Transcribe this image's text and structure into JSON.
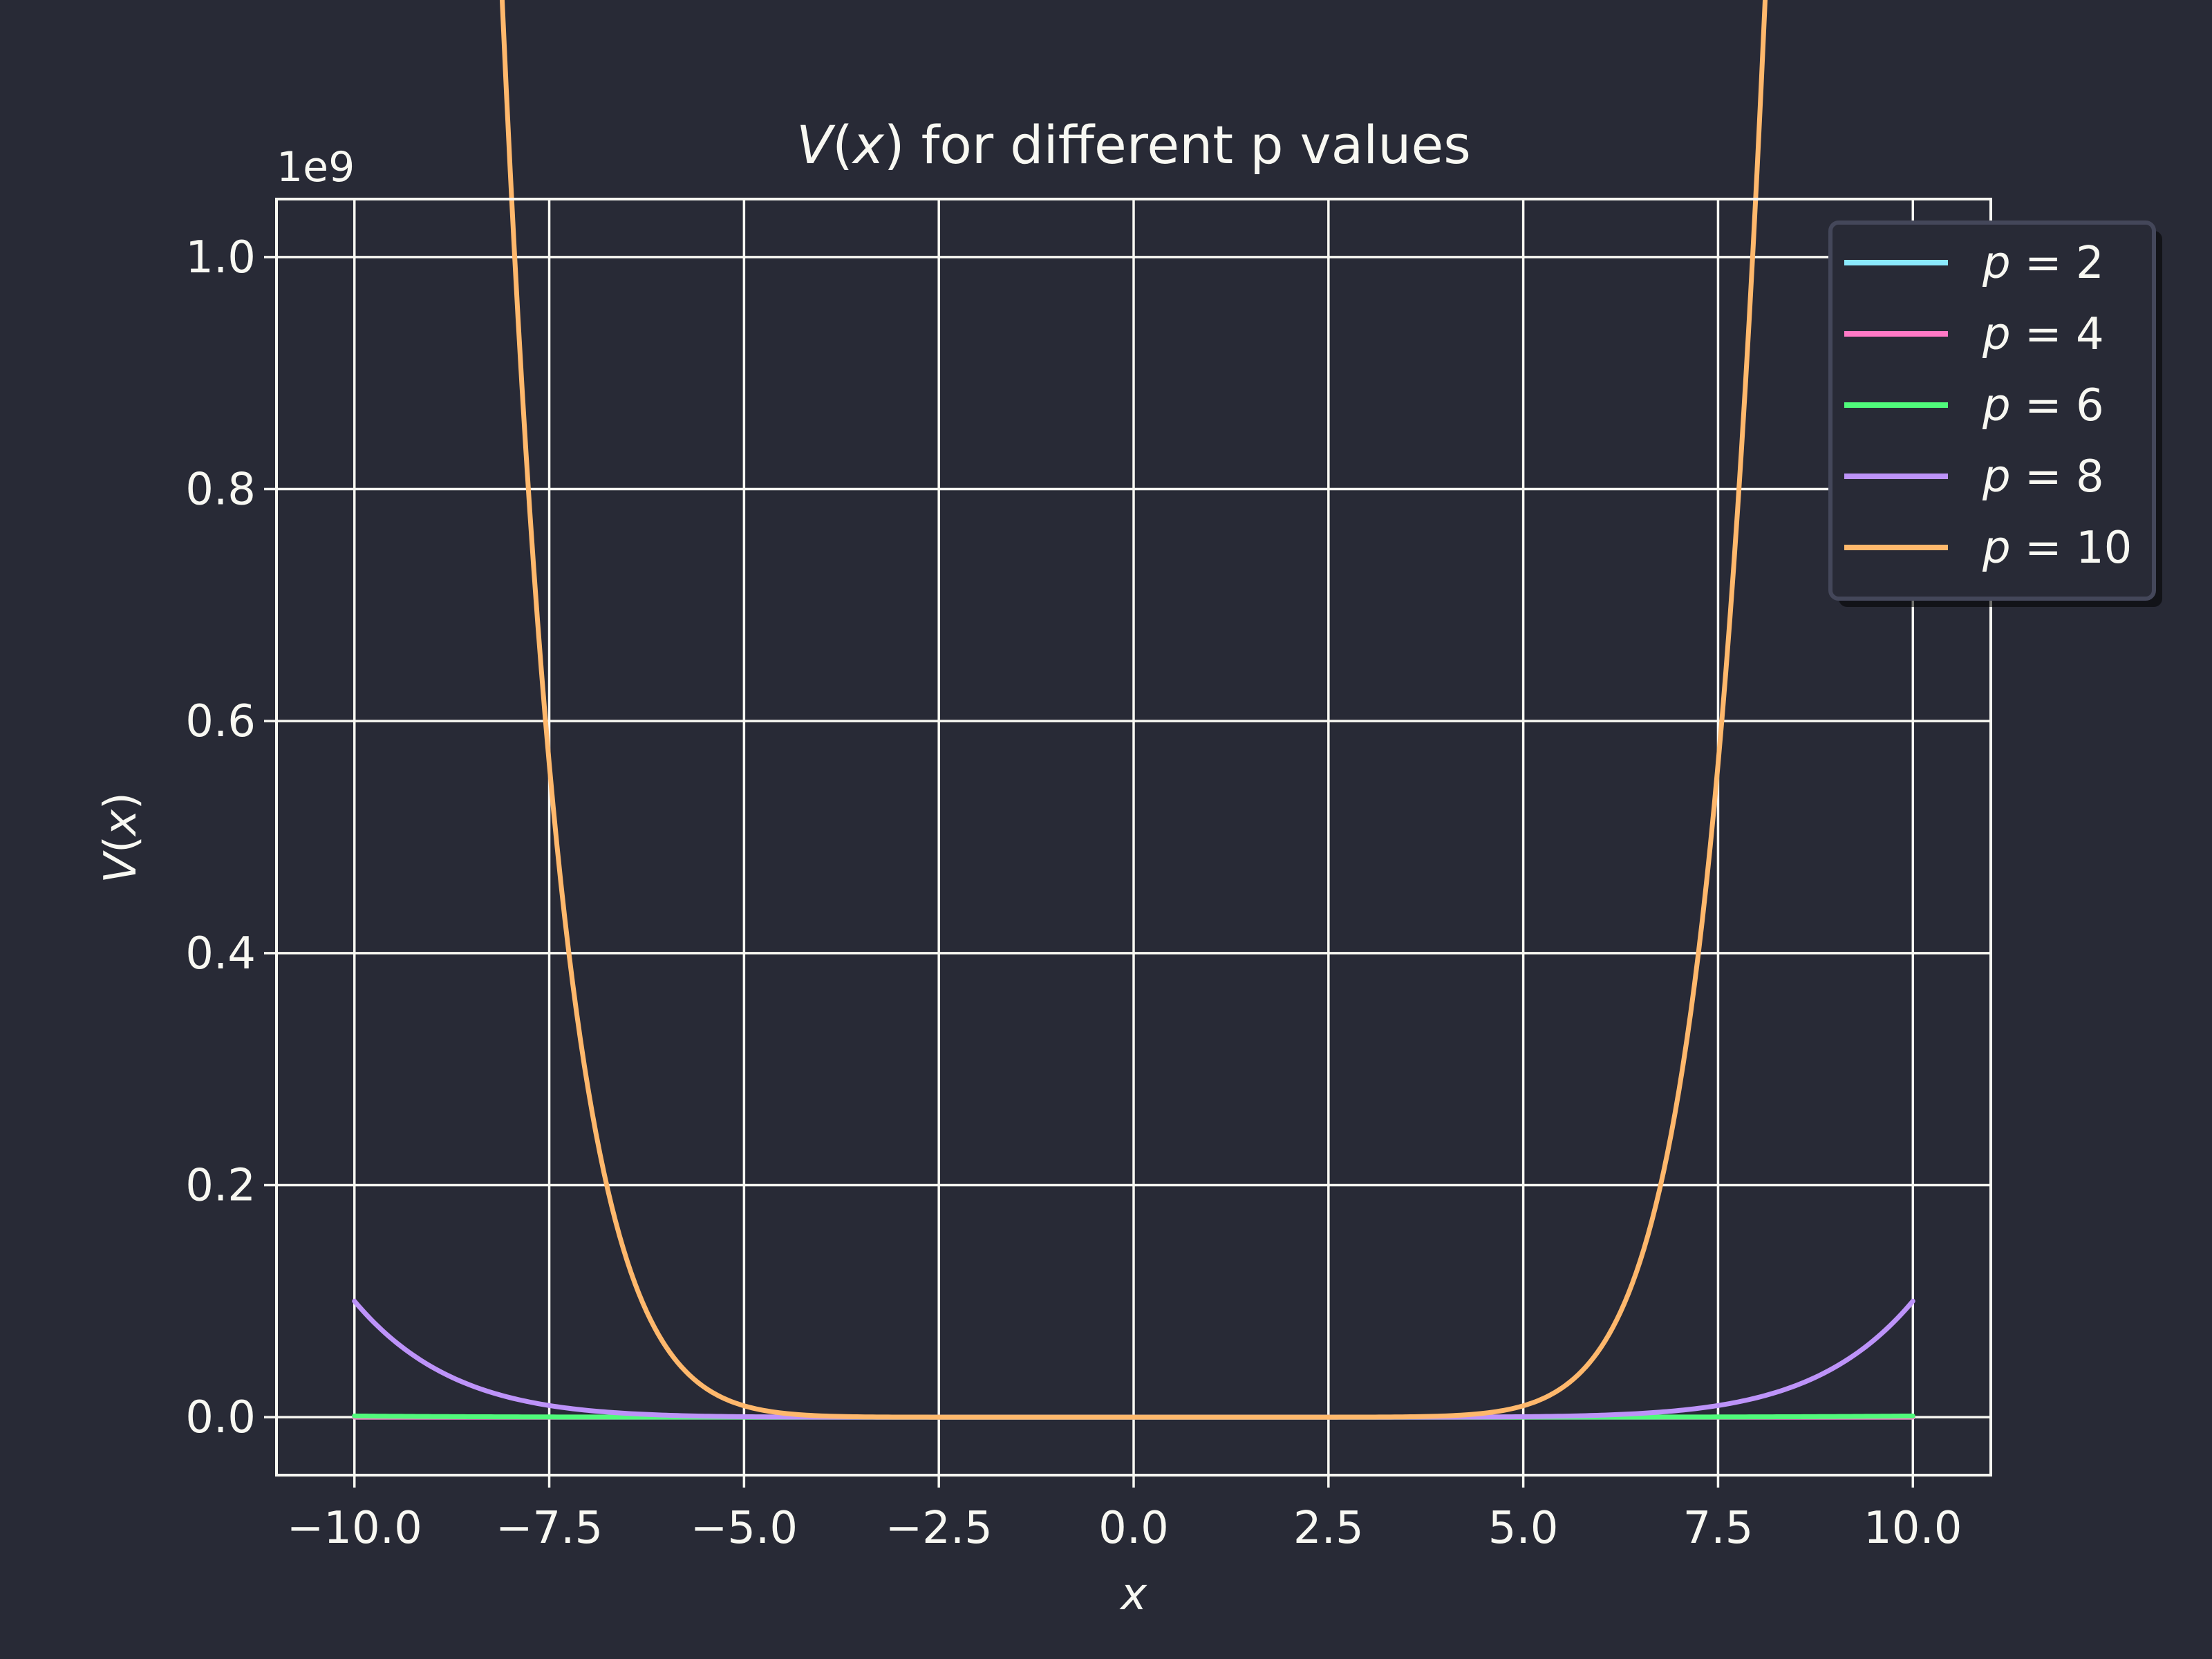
{
  "chart_data": {
    "type": "line",
    "title_italic": "V",
    "title_paren_open": "(",
    "title_var": "x",
    "title_rest": ") for different p values",
    "xlabel": "x",
    "ylabel_italic": "V",
    "ylabel_paren_open": "(",
    "ylabel_var": "x",
    "ylabel_paren_close": ")",
    "y_offset_label": "1e9",
    "xlim": [
      -11,
      11
    ],
    "ylim": [
      -0.05,
      1.05
    ],
    "y_scale_factor": 1000000000,
    "x_ticks": [
      -10.0,
      -7.5,
      -5.0,
      -2.5,
      0.0,
      2.5,
      5.0,
      7.5,
      10.0
    ],
    "x_tick_labels": [
      "−10.0",
      "−7.5",
      "−5.0",
      "−2.5",
      "0.0",
      "2.5",
      "5.0",
      "7.5",
      "10.0"
    ],
    "y_ticks": [
      0.0,
      0.2,
      0.4,
      0.6,
      0.8,
      1.0
    ],
    "y_tick_labels": [
      "0.0",
      "0.2",
      "0.4",
      "0.6",
      "0.8",
      "1.0"
    ],
    "x_range": [
      -10,
      10
    ],
    "grid": true,
    "legend_position": "top-right",
    "series": [
      {
        "name": "p = 2",
        "legend_var": "p",
        "legend_eq": " = ",
        "legend_val": "2",
        "p": 2,
        "color": "#8be9fd"
      },
      {
        "name": "p = 4",
        "legend_var": "p",
        "legend_eq": " = ",
        "legend_val": "4",
        "p": 4,
        "color": "#ff79c6"
      },
      {
        "name": "p = 6",
        "legend_var": "p",
        "legend_eq": " = ",
        "legend_val": "6",
        "p": 6,
        "color": "#50fa7b"
      },
      {
        "name": "p = 8",
        "legend_var": "p",
        "legend_eq": " = ",
        "legend_val": "8",
        "p": 8,
        "color": "#bd93f9"
      },
      {
        "name": "p = 10",
        "legend_var": "p",
        "legend_eq": " = ",
        "legend_val": "10",
        "p": 10,
        "color": "#ffb86c"
      }
    ],
    "colors": {
      "background": "#282a36",
      "foreground": "#f8f8f2",
      "legend_bg": "#282a36",
      "legend_border": "#44475a"
    }
  }
}
